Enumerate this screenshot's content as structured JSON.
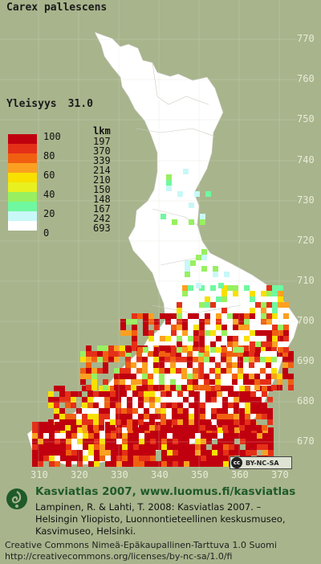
{
  "species": "Carex pallescens",
  "yleisyys_label": "Yleisyys",
  "yleisyys_value": "31.0",
  "legend": {
    "header": "lkm",
    "items": [
      {
        "label": "100",
        "count": "197",
        "color": "#c0000e"
      },
      {
        "label": "80",
        "count": "370",
        "color": "#e53018"
      },
      {
        "label": "",
        "count": "339",
        "color": "#f06010"
      },
      {
        "label": "60",
        "count": "214",
        "color": "#fba020"
      },
      {
        "label": "",
        "count": "210",
        "color": "#f8e000"
      },
      {
        "label": "40",
        "count": "150",
        "color": "#e8f020"
      },
      {
        "label": "",
        "count": "148",
        "color": "#98f060"
      },
      {
        "label": "20",
        "count": "167",
        "color": "#70f8a0"
      },
      {
        "label": "",
        "count": "242",
        "color": "#c8f8f8"
      },
      {
        "label": "0",
        "count": "693",
        "color": "#ffffff"
      }
    ]
  },
  "grid_y_labels": [
    "770",
    "760",
    "750",
    "740",
    "730",
    "720",
    "710",
    "700",
    "690",
    "680",
    "670"
  ],
  "grid_x_labels": [
    "310",
    "320",
    "330",
    "340",
    "350",
    "360",
    "370"
  ],
  "license_badge": "BY-NC-SA",
  "license_badge_icon": "cc",
  "footer": {
    "title": "Kasviatlas 2007, www.luomus.fi/kasviatlas",
    "line1": "Lampinen, R. & Lahti, T. 2008: Kasviatlas 2007. –",
    "line2": "Helsingin Yliopisto, Luonnontieteellinen keskusmuseo,",
    "line3": "Kasvimuseo, Helsinki.",
    "cc_line1": "Creative Commons Nimeä-Epäkaupallinen-Tarttuva 1.0 Suomi",
    "cc_line2": "http://creativecommons.org/licenses/by-nc-sa/1.0/fi"
  },
  "colors": {
    "background": "#a8b48c",
    "land": "#ffffff",
    "title_green": "#1f5a2a"
  }
}
